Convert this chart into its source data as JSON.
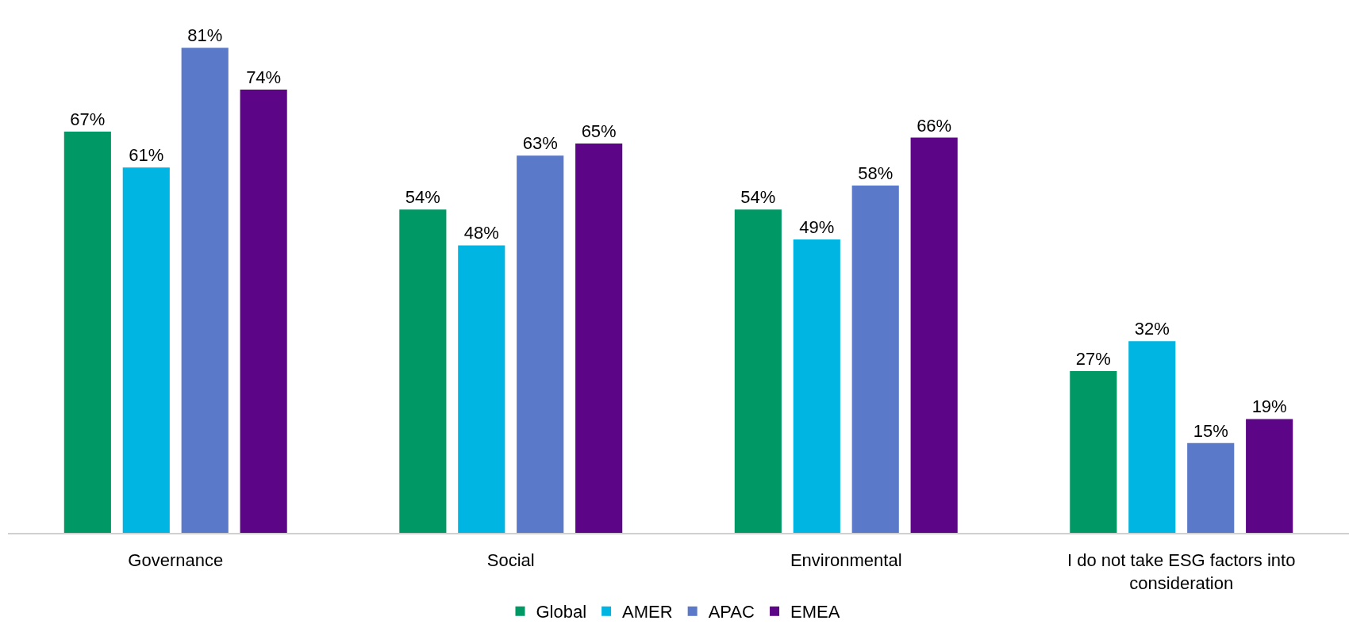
{
  "chart_data": {
    "type": "bar",
    "categories": [
      "Governance",
      "Social",
      "Environmental",
      "I do not take ESG factors into consideration"
    ],
    "series": [
      {
        "name": "Global",
        "color": "#009966",
        "values": [
          67,
          54,
          54,
          27
        ],
        "value_labels": [
          "67%",
          "54%",
          "54%",
          "27%"
        ]
      },
      {
        "name": "AMER",
        "color": "#00b5e2",
        "values": [
          61,
          48,
          49,
          32
        ],
        "value_labels": [
          "61%",
          "48%",
          "49%",
          "32%"
        ]
      },
      {
        "name": "APAC",
        "color": "#5b79c9",
        "values": [
          81,
          63,
          58,
          15
        ],
        "value_labels": [
          "81%",
          "63%",
          "58%",
          "15%"
        ]
      },
      {
        "name": "EMEA",
        "color": "#5c0687",
        "values": [
          74,
          65,
          66,
          19
        ],
        "value_labels": [
          "74%",
          "65%",
          "66%",
          "19%"
        ]
      }
    ],
    "legend": "bottom"
  }
}
